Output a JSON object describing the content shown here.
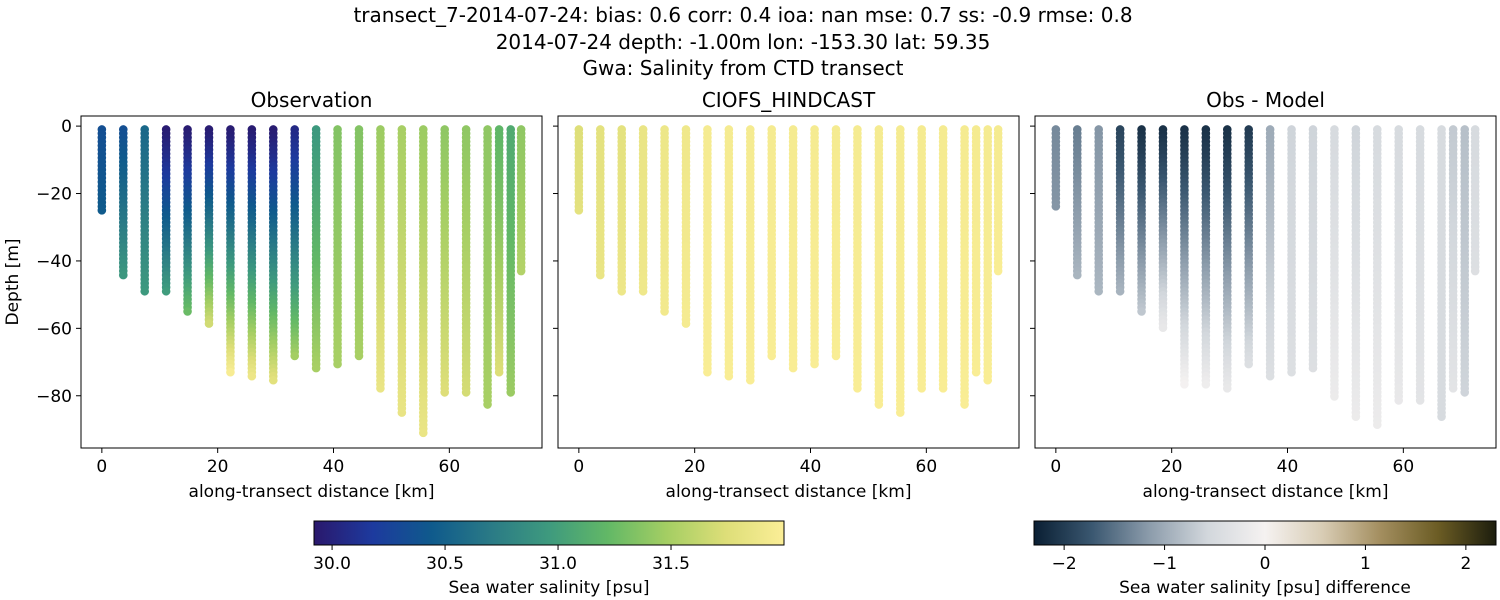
{
  "figure": {
    "title_lines": [
      "transect_7-2014-07-24: bias: 0.6  corr: 0.4  ioa: nan  mse: 0.7  ss: -0.9  rmse: 0.8",
      "2014-07-24 depth: -1.00m lon: -153.30 lat: 59.35",
      "Gwa: Salinity from CTD transect"
    ]
  },
  "chart_data": [
    {
      "type": "scatter",
      "title": "Observation",
      "xlabel": "along-transect distance [km]",
      "ylabel": "Depth [m]",
      "xlim": [
        -3.6,
        76.0
      ],
      "ylim": [
        -95.5,
        3.0
      ],
      "xticks": [
        "0",
        "20",
        "40",
        "60"
      ],
      "xtick_values": [
        0,
        20,
        40,
        60
      ],
      "yticks": [
        "0",
        "−20",
        "−40",
        "−60",
        "−80"
      ],
      "ytick_values": [
        0,
        -20,
        -40,
        -60,
        -80
      ],
      "colormap": "haline",
      "colorbar_index": 0,
      "grid": false,
      "casts": [
        {
          "x": 0.0,
          "bottom": -26,
          "top_value": 30.35,
          "bottom_value": 30.45
        },
        {
          "x": 3.7,
          "bottom": -45,
          "top_value": 30.35,
          "bottom_value": 30.95
        },
        {
          "x": 7.4,
          "bottom": -49,
          "top_value": 30.55,
          "bottom_value": 30.95
        },
        {
          "x": 11.1,
          "bottom": -50,
          "top_value": 29.95,
          "bottom_value": 31.0
        },
        {
          "x": 14.8,
          "bottom": -55,
          "top_value": 29.95,
          "bottom_value": 31.25
        },
        {
          "x": 18.5,
          "bottom": -59,
          "top_value": 29.95,
          "bottom_value": 31.7
        },
        {
          "x": 22.2,
          "bottom": -74,
          "top_value": 29.95,
          "bottom_value": 32.0
        },
        {
          "x": 25.9,
          "bottom": -75,
          "top_value": 29.95,
          "bottom_value": 31.9
        },
        {
          "x": 29.6,
          "bottom": -76,
          "top_value": 29.95,
          "bottom_value": 31.8
        },
        {
          "x": 33.3,
          "bottom": -69,
          "top_value": 30.05,
          "bottom_value": 31.5
        },
        {
          "x": 37.0,
          "bottom": -72,
          "top_value": 30.95,
          "bottom_value": 31.5
        },
        {
          "x": 40.7,
          "bottom": -71,
          "top_value": 31.35,
          "bottom_value": 31.5
        },
        {
          "x": 44.4,
          "bottom": -69,
          "top_value": 31.35,
          "bottom_value": 31.5
        },
        {
          "x": 48.1,
          "bottom": -78,
          "top_value": 31.45,
          "bottom_value": 31.85
        },
        {
          "x": 51.8,
          "bottom": -86,
          "top_value": 31.5,
          "bottom_value": 31.85
        },
        {
          "x": 55.5,
          "bottom": -91,
          "top_value": 31.45,
          "bottom_value": 31.85
        },
        {
          "x": 59.2,
          "bottom": -80,
          "top_value": 31.4,
          "bottom_value": 31.75
        },
        {
          "x": 62.9,
          "bottom": -79,
          "top_value": 31.4,
          "bottom_value": 31.7
        },
        {
          "x": 66.6,
          "bottom": -83,
          "top_value": 31.4,
          "bottom_value": 31.5
        },
        {
          "x": 68.6,
          "bottom": -74,
          "top_value": 31.2,
          "bottom_value": 31.75
        },
        {
          "x": 70.6,
          "bottom": -80,
          "top_value": 31.1,
          "bottom_value": 31.45
        },
        {
          "x": 72.4,
          "bottom": -43,
          "top_value": 31.4,
          "bottom_value": 31.55
        }
      ]
    },
    {
      "type": "scatter",
      "title": "CIOFS_HINDCAST",
      "xlabel": "along-transect distance [km]",
      "xlim": [
        -3.6,
        76.0
      ],
      "ylim": [
        -95.5,
        3.0
      ],
      "xticks": [
        "0",
        "20",
        "40",
        "60"
      ],
      "xtick_values": [
        0,
        20,
        40,
        60
      ],
      "yticks": [],
      "colormap": "haline",
      "colorbar_index": 0,
      "grid": false,
      "casts": [
        {
          "x": 0.0,
          "bottom": -26,
          "top_value": 31.75,
          "bottom_value": 31.8
        },
        {
          "x": 3.7,
          "bottom": -45,
          "top_value": 31.8,
          "bottom_value": 31.85
        },
        {
          "x": 7.4,
          "bottom": -49,
          "top_value": 31.8,
          "bottom_value": 31.88
        },
        {
          "x": 11.1,
          "bottom": -50,
          "top_value": 31.85,
          "bottom_value": 31.9
        },
        {
          "x": 14.8,
          "bottom": -55,
          "top_value": 31.88,
          "bottom_value": 31.92
        },
        {
          "x": 18.5,
          "bottom": -59,
          "top_value": 31.9,
          "bottom_value": 31.95
        },
        {
          "x": 22.2,
          "bottom": -74,
          "top_value": 31.95,
          "bottom_value": 31.98
        },
        {
          "x": 25.9,
          "bottom": -75,
          "top_value": 31.95,
          "bottom_value": 31.98
        },
        {
          "x": 29.6,
          "bottom": -76,
          "top_value": 31.95,
          "bottom_value": 31.98
        },
        {
          "x": 33.3,
          "bottom": -69,
          "top_value": 31.95,
          "bottom_value": 31.98
        },
        {
          "x": 37.0,
          "bottom": -72,
          "top_value": 31.95,
          "bottom_value": 31.98
        },
        {
          "x": 40.7,
          "bottom": -71,
          "top_value": 31.95,
          "bottom_value": 31.98
        },
        {
          "x": 44.4,
          "bottom": -69,
          "top_value": 31.95,
          "bottom_value": 31.98
        },
        {
          "x": 48.1,
          "bottom": -78,
          "top_value": 31.95,
          "bottom_value": 31.98
        },
        {
          "x": 51.8,
          "bottom": -83,
          "top_value": 31.95,
          "bottom_value": 31.98
        },
        {
          "x": 55.5,
          "bottom": -85,
          "top_value": 31.95,
          "bottom_value": 31.98
        },
        {
          "x": 59.2,
          "bottom": -78,
          "top_value": 31.95,
          "bottom_value": 31.98
        },
        {
          "x": 62.9,
          "bottom": -78,
          "top_value": 31.95,
          "bottom_value": 31.98
        },
        {
          "x": 66.6,
          "bottom": -83,
          "top_value": 31.95,
          "bottom_value": 31.98
        },
        {
          "x": 68.6,
          "bottom": -74,
          "top_value": 31.95,
          "bottom_value": 31.98
        },
        {
          "x": 70.6,
          "bottom": -76,
          "top_value": 31.95,
          "bottom_value": 31.98
        },
        {
          "x": 72.4,
          "bottom": -43,
          "top_value": 31.95,
          "bottom_value": 31.98
        }
      ]
    },
    {
      "type": "scatter",
      "title": "Obs - Model",
      "xlabel": "along-transect distance [km]",
      "xlim": [
        -3.6,
        76.0
      ],
      "ylim": [
        -95.5,
        3.0
      ],
      "xticks": [
        "0",
        "20",
        "40",
        "60"
      ],
      "xtick_values": [
        0,
        20,
        40,
        60
      ],
      "yticks": [],
      "colormap": "diff",
      "colorbar_index": 1,
      "grid": false,
      "casts": [
        {
          "x": 0.0,
          "bottom": -24,
          "top_value": -1.3,
          "bottom_value": -1.2
        },
        {
          "x": 3.7,
          "bottom": -45,
          "top_value": -1.4,
          "bottom_value": -0.9
        },
        {
          "x": 7.4,
          "bottom": -49,
          "top_value": -1.2,
          "bottom_value": -0.9
        },
        {
          "x": 11.1,
          "bottom": -50,
          "top_value": -1.9,
          "bottom_value": -0.9
        },
        {
          "x": 14.8,
          "bottom": -56,
          "top_value": -2.1,
          "bottom_value": -0.7
        },
        {
          "x": 18.5,
          "bottom": -60,
          "top_value": -2.1,
          "bottom_value": -0.2
        },
        {
          "x": 22.2,
          "bottom": -77,
          "top_value": -2.1,
          "bottom_value": 0.0
        },
        {
          "x": 25.9,
          "bottom": -77,
          "top_value": -2.1,
          "bottom_value": -0.1
        },
        {
          "x": 29.6,
          "bottom": -78,
          "top_value": -2.1,
          "bottom_value": -0.2
        },
        {
          "x": 33.3,
          "bottom": -71,
          "top_value": -2.0,
          "bottom_value": -0.4
        },
        {
          "x": 37.0,
          "bottom": -75,
          "top_value": -1.0,
          "bottom_value": -0.4
        },
        {
          "x": 40.7,
          "bottom": -74,
          "top_value": -0.6,
          "bottom_value": -0.4
        },
        {
          "x": 44.4,
          "bottom": -72,
          "top_value": -0.6,
          "bottom_value": -0.4
        },
        {
          "x": 48.1,
          "bottom": -81,
          "top_value": -0.5,
          "bottom_value": -0.15
        },
        {
          "x": 51.8,
          "bottom": -87,
          "top_value": -0.6,
          "bottom_value": -0.15
        },
        {
          "x": 55.5,
          "bottom": -89,
          "top_value": -0.5,
          "bottom_value": -0.15
        },
        {
          "x": 59.2,
          "bottom": -82,
          "top_value": -0.5,
          "bottom_value": -0.2
        },
        {
          "x": 62.9,
          "bottom": -82,
          "top_value": -0.5,
          "bottom_value": -0.3
        },
        {
          "x": 66.6,
          "bottom": -87,
          "top_value": -0.5,
          "bottom_value": -0.5
        },
        {
          "x": 68.6,
          "bottom": -78,
          "top_value": -0.7,
          "bottom_value": -0.3
        },
        {
          "x": 70.6,
          "bottom": -79,
          "top_value": -0.8,
          "bottom_value": -0.6
        },
        {
          "x": 72.4,
          "bottom": -43,
          "top_value": -0.5,
          "bottom_value": -0.4
        }
      ]
    }
  ],
  "colorbars": [
    {
      "label": "Sea water salinity [psu]",
      "cmap": "haline",
      "vmin": 29.92,
      "vmax": 32.0,
      "ticks": [
        "30.0",
        "30.5",
        "31.0",
        "31.5"
      ],
      "tick_values": [
        30.0,
        30.5,
        31.0,
        31.5
      ],
      "stops": [
        "#2a186c",
        "#1d3a9e",
        "#0f5a8c",
        "#2a7a86",
        "#3e9a7e",
        "#62b866",
        "#a4ce63",
        "#ddde78",
        "#fbee97"
      ]
    },
    {
      "label": "Sea water salinity [psu] difference",
      "cmap": "diff",
      "vmin": -2.3,
      "vmax": 2.3,
      "ticks": [
        "−2",
        "−1",
        "0",
        "1",
        "2"
      ],
      "tick_values": [
        -2,
        -1,
        0,
        1,
        2
      ],
      "stops": [
        "#0a1f33",
        "#3a5770",
        "#8c9cab",
        "#d2d7dc",
        "#f5f2f1",
        "#d8ccb4",
        "#a38e5f",
        "#6b5c24",
        "#1c1d0d"
      ]
    }
  ]
}
